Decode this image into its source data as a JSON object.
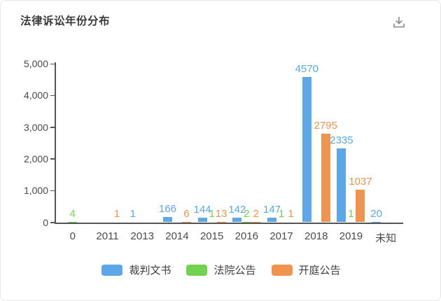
{
  "header": {
    "title": "法律诉讼年份分布"
  },
  "icons": {
    "download": "download-icon"
  },
  "chart_data": {
    "type": "bar",
    "title": "法律诉讼年份分布",
    "categories": [
      "0",
      "2011",
      "2013",
      "2014",
      "2015",
      "2016",
      "2017",
      "2018",
      "2019",
      "未知"
    ],
    "series": [
      {
        "name": "裁判文书",
        "slug": "judgment-documents",
        "color": "#5BA7E8",
        "values": [
          null,
          null,
          1,
          166,
          144,
          142,
          147,
          4570,
          2335,
          20
        ]
      },
      {
        "name": "法院公告",
        "slug": "court-announcements",
        "color": "#71D24F",
        "values": [
          4,
          null,
          null,
          null,
          1,
          2,
          1,
          null,
          1,
          null
        ]
      },
      {
        "name": "开庭公告",
        "slug": "hearing-announcements",
        "color": "#F0934E",
        "values": [
          null,
          1,
          null,
          6,
          13,
          2,
          1,
          2795,
          1037,
          null
        ]
      }
    ],
    "ylim": [
      0,
      5000
    ],
    "yticks": [
      0,
      1000,
      2000,
      3000,
      4000,
      5000
    ],
    "ytick_labels": [
      "0",
      "1,000",
      "2,000",
      "3,000",
      "4,000",
      "5,000"
    ],
    "grid": false,
    "legend_position": "bottom",
    "axis_color": "#555555",
    "text_color": "#4a4a4a"
  }
}
